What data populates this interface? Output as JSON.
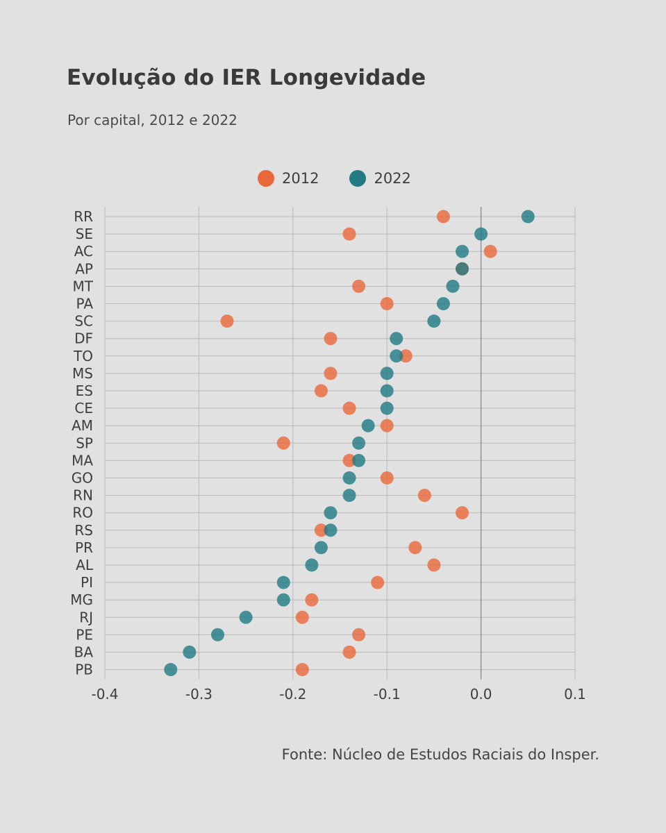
{
  "title": "Evolução do IER Longevidade",
  "subtitle": "Por capital, 2012 e 2022",
  "source": "Fonte: Núcleo de Estudos Raciais do Insper.",
  "colors": {
    "series_2012": "#e8683a",
    "series_2022": "#217a84",
    "grid": "#b9b9b9",
    "zero_line": "#8a8a8a"
  },
  "chart_data": {
    "type": "scatter",
    "title": "Evolução do IER Longevidade",
    "subtitle": "Por capital, 2012 e 2022",
    "xlabel": "",
    "ylabel": "",
    "xlim": [
      -0.4,
      0.1
    ],
    "xticks": [
      "-0.4",
      "-0.3",
      "-0.2",
      "-0.1",
      "0.0",
      "0.1"
    ],
    "grid": true,
    "legend_position": "top-center",
    "categories": [
      "RR",
      "SE",
      "AC",
      "AP",
      "MT",
      "PA",
      "SC",
      "DF",
      "TO",
      "MS",
      "ES",
      "CE",
      "AM",
      "SP",
      "MA",
      "GO",
      "RN",
      "RO",
      "RS",
      "PR",
      "AL",
      "PI",
      "MG",
      "RJ",
      "PE",
      "BA",
      "PB"
    ],
    "series": [
      {
        "name": "2012",
        "color": "#e8683a",
        "values": [
          -0.04,
          -0.14,
          0.01,
          -0.02,
          -0.13,
          -0.1,
          -0.27,
          -0.16,
          -0.08,
          -0.16,
          -0.17,
          -0.14,
          -0.1,
          -0.21,
          -0.14,
          -0.1,
          -0.06,
          -0.02,
          -0.17,
          -0.07,
          -0.05,
          -0.11,
          -0.18,
          -0.19,
          -0.13,
          -0.14,
          -0.19
        ]
      },
      {
        "name": "2022",
        "color": "#217a84",
        "values": [
          0.05,
          0.0,
          -0.02,
          -0.02,
          -0.03,
          -0.04,
          -0.05,
          -0.09,
          -0.09,
          -0.1,
          -0.1,
          -0.1,
          -0.12,
          -0.13,
          -0.13,
          -0.14,
          -0.14,
          -0.16,
          -0.16,
          -0.17,
          -0.18,
          -0.21,
          -0.21,
          -0.25,
          -0.28,
          -0.31,
          -0.33
        ]
      }
    ]
  }
}
